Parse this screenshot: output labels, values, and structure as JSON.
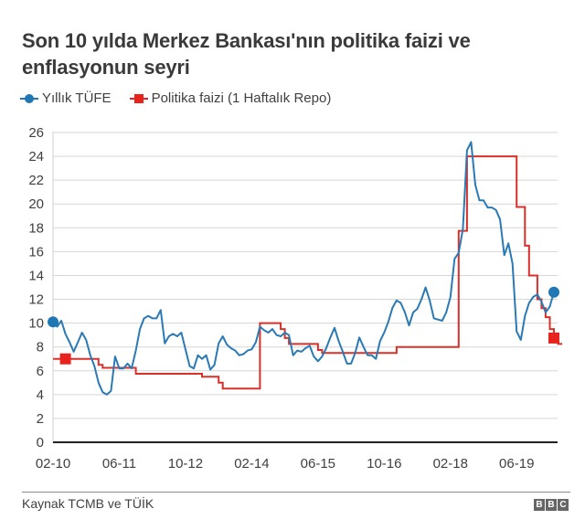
{
  "header": {
    "title": "Son 10 yılda Merkez Bankası'nın politika faizi ve enflasyonun seyri"
  },
  "legend": {
    "items": [
      {
        "label": "Yıllık TÜFE",
        "color": "#1f77b4",
        "marker": "circle"
      },
      {
        "label": "Politika faizi (1 Haftalık Repo)",
        "color": "#e8221c",
        "marker": "square"
      }
    ]
  },
  "footer": {
    "source": "Kaynak TCMB ve TÜİK",
    "logo": [
      "B",
      "B",
      "C"
    ]
  },
  "chart_data": {
    "type": "line",
    "title": "Son 10 yılda Merkez Bankası'nın politika faizi ve enflasyonun seyri",
    "xlabel": "",
    "ylabel": "",
    "ylim": [
      0,
      26
    ],
    "yticks": [
      0,
      2,
      4,
      6,
      8,
      10,
      12,
      14,
      16,
      18,
      20,
      22,
      24,
      26
    ],
    "xticks": [
      "02-10",
      "06-11",
      "10-12",
      "02-14",
      "06-15",
      "10-16",
      "02-18",
      "06-19"
    ],
    "grid": true,
    "legend_position": "top",
    "x_start": "2010-02",
    "x_step": "1 month",
    "series": [
      {
        "name": "Yıllık TÜFE",
        "color": "#1f77b4",
        "values": [
          10.1,
          9.7,
          10.2,
          9.1,
          8.4,
          7.6,
          8.4,
          9.2,
          8.6,
          7.3,
          6.4,
          5.0,
          4.2,
          4.0,
          4.3,
          7.2,
          6.2,
          6.2,
          6.6,
          6.2,
          7.7,
          9.5,
          10.4,
          10.6,
          10.4,
          10.4,
          11.1,
          8.3,
          8.9,
          9.1,
          8.9,
          9.2,
          7.8,
          6.4,
          6.2,
          7.3,
          7.0,
          7.3,
          6.1,
          6.5,
          8.3,
          8.9,
          8.2,
          7.9,
          7.7,
          7.3,
          7.4,
          7.7,
          7.8,
          8.4,
          9.7,
          9.4,
          9.2,
          9.5,
          9.0,
          8.9,
          9.2,
          9.0,
          7.3,
          7.7,
          7.6,
          7.9,
          8.1,
          7.2,
          6.8,
          7.2,
          7.9,
          8.8,
          9.6,
          8.5,
          7.6,
          6.6,
          6.6,
          7.5,
          8.8,
          8.0,
          7.3,
          7.3,
          7.0,
          8.5,
          9.2,
          10.1,
          11.3,
          11.9,
          11.7,
          10.9,
          9.8,
          10.9,
          11.2,
          12.0,
          13.0,
          11.9,
          10.4,
          10.3,
          10.2,
          10.9,
          12.2,
          15.4,
          15.9,
          17.9,
          24.5,
          25.2,
          21.6,
          20.3,
          20.3,
          19.7,
          19.7,
          19.5,
          18.7,
          15.7,
          16.7,
          15.0,
          9.3,
          8.6,
          10.6,
          11.7,
          12.2,
          12.4,
          11.8,
          10.9,
          11.4,
          12.6
        ],
        "endpoints": {
          "first": 10.1,
          "last": 12.6
        }
      },
      {
        "name": "Politika faizi (1 Haftalık Repo)",
        "color": "#e8221c",
        "values": [
          7.0,
          7.0,
          7.0,
          7.0,
          7.0,
          7.0,
          7.0,
          7.0,
          7.0,
          7.0,
          7.0,
          6.5,
          6.25,
          6.25,
          6.25,
          6.25,
          6.25,
          6.25,
          6.25,
          6.25,
          5.75,
          5.75,
          5.75,
          5.75,
          5.75,
          5.75,
          5.75,
          5.75,
          5.75,
          5.75,
          5.75,
          5.75,
          5.75,
          5.75,
          5.75,
          5.75,
          5.5,
          5.5,
          5.5,
          5.5,
          5.0,
          4.5,
          4.5,
          4.5,
          4.5,
          4.5,
          4.5,
          4.5,
          4.5,
          4.5,
          10.0,
          10.0,
          10.0,
          10.0,
          10.0,
          9.5,
          8.75,
          8.25,
          8.25,
          8.25,
          8.25,
          8.25,
          8.25,
          8.25,
          7.75,
          7.5,
          7.5,
          7.5,
          7.5,
          7.5,
          7.5,
          7.5,
          7.5,
          7.5,
          7.5,
          7.5,
          7.5,
          7.5,
          7.5,
          7.5,
          7.5,
          7.5,
          7.5,
          8.0,
          8.0,
          8.0,
          8.0,
          8.0,
          8.0,
          8.0,
          8.0,
          8.0,
          8.0,
          8.0,
          8.0,
          8.0,
          8.0,
          8.0,
          17.75,
          17.75,
          24.0,
          24.0,
          24.0,
          24.0,
          24.0,
          24.0,
          24.0,
          24.0,
          24.0,
          24.0,
          24.0,
          24.0,
          19.75,
          19.75,
          16.5,
          14.0,
          14.0,
          12.0,
          11.25,
          10.5,
          9.5,
          8.75,
          8.25,
          8.25
        ],
        "endpoints": {
          "first": 7.0,
          "last": 8.25
        }
      }
    ]
  }
}
